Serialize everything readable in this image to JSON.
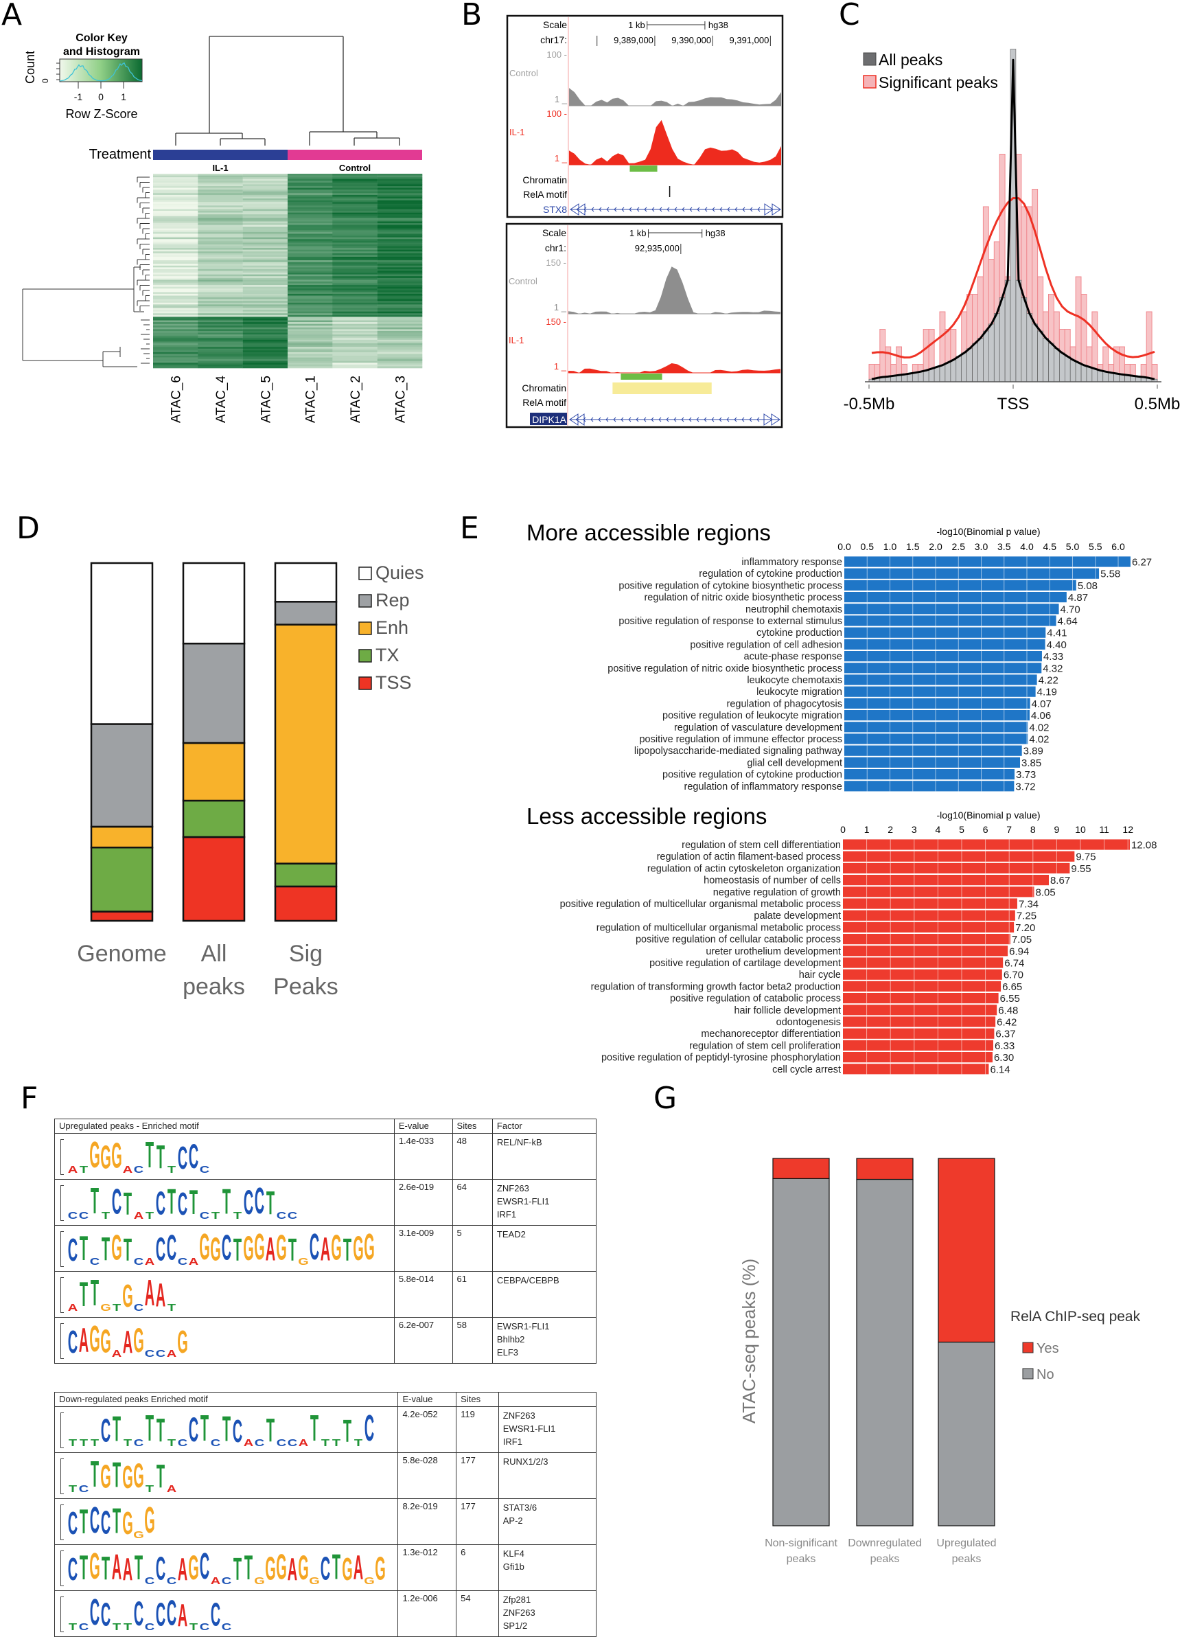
{
  "panel_labels": [
    "A",
    "B",
    "C",
    "D",
    "E",
    "F",
    "G"
  ],
  "panelA": {
    "color_key_title": [
      "Color Key",
      "and Histogram"
    ],
    "count_label": "Count",
    "count_tick": "0",
    "zscore_ticks": [
      "-1",
      "0",
      "1"
    ],
    "zscore_label": "Row Z-Score",
    "treatment_label": "Treatment",
    "groups": [
      {
        "name": "IL-1",
        "color": "#2b3f95"
      },
      {
        "name": "Control",
        "color": "#e23a93"
      }
    ],
    "columns": [
      "ATAC_6",
      "ATAC_4",
      "ATAC_5",
      "ATAC_1",
      "ATAC_2",
      "ATAC_3"
    ],
    "colors": {
      "low": "#f1f8ec",
      "high": "#0b6a31",
      "histogram": "#3fc3d6"
    },
    "relative_intensity": {
      "upper_cluster": [
        0.12,
        0.3,
        0.3,
        0.72,
        0.8,
        0.88
      ],
      "lower_cluster": [
        0.72,
        0.78,
        0.88,
        0.35,
        0.22,
        0.3
      ]
    }
  },
  "panelB": {
    "browsers": [
      {
        "scale_label": "Scale",
        "scale_text": "1 kb",
        "assembly": "hg38",
        "chrom": "chr17:",
        "positions": [
          "9,389,000",
          "9,390,000",
          "9,391,000"
        ],
        "control": {
          "label": "Control",
          "max": "100 -",
          "min": "1 _",
          "signal": [
            0.35,
            0.25,
            0.1,
            0,
            0,
            0.1,
            0.12,
            0.05,
            0.12,
            0.15,
            0.12,
            0,
            0,
            0,
            0,
            0,
            0.1,
            0.12,
            0.08,
            0,
            0.02,
            0,
            0.08,
            0.1,
            0.12,
            0.14,
            0.15,
            0.15,
            0.17,
            0.15,
            0.14,
            0.1,
            0.05,
            0.04,
            0.04,
            0.04,
            0.05,
            0.04,
            0.1,
            0.25
          ]
        },
        "il1": {
          "label": "IL-1",
          "max": "100 -",
          "min": "1 _",
          "signal": [
            0.28,
            0.2,
            0.08,
            0.02,
            0,
            0.12,
            0.15,
            0.05,
            0.15,
            0.22,
            0.2,
            0.05,
            0.04,
            0.05,
            0.08,
            0.3,
            0.75,
            0.9,
            0.6,
            0.3,
            0.1,
            0.05,
            0.03,
            0,
            0.15,
            0.3,
            0.32,
            0.3,
            0.28,
            0.3,
            0.32,
            0.25,
            0.12,
            0.08,
            0.06,
            0.06,
            0.08,
            0.1,
            0.15,
            0.35
          ]
        },
        "chromatin_label": "Chromatin",
        "motif_label": "RelA motif",
        "gene": "STX8",
        "gene_highlight": false
      },
      {
        "scale_label": "Scale",
        "scale_text": "1 kb",
        "assembly": "hg38",
        "chrom": "chr1:",
        "positions": [
          "92,935,000"
        ],
        "control": {
          "label": "Control",
          "max": "150 -",
          "min": "1 _",
          "signal": [
            0.05,
            0.02,
            0,
            0.02,
            0.02,
            0.06,
            0.05,
            0.03,
            0,
            0.01,
            0,
            0.01,
            0,
            0.02,
            0.02,
            0.02,
            0.08,
            0.35,
            0.7,
            0.92,
            0.85,
            0.6,
            0.3,
            0.05,
            0,
            0,
            0,
            0.02,
            0.03,
            0.02,
            0.04,
            0.03,
            0.02,
            0.02,
            0.03,
            0.05,
            0.08,
            0.06,
            0.03,
            0.02
          ]
        },
        "il1": {
          "label": "IL-1",
          "max": "150 -",
          "min": "1 _",
          "signal": [
            0.04,
            0.02,
            0,
            0.08,
            0.1,
            0.08,
            0.04,
            0.02,
            0,
            0.01,
            0,
            0,
            0,
            0,
            0.02,
            0.02,
            0.05,
            0.1,
            0.14,
            0.18,
            0.15,
            0.1,
            0.05,
            0.02,
            0,
            0,
            0,
            0.04,
            0.06,
            0.06,
            0.04,
            0.03,
            0.04,
            0.05,
            0.05,
            0.06,
            0.06,
            0.05,
            0.05,
            0.06
          ]
        },
        "chromatin_label": "Chromatin",
        "motif_label": "RelA motif",
        "gene": "DIPK1A",
        "gene_highlight": true
      }
    ],
    "colors": {
      "control": "#8e8e8e",
      "il1": "#ee2b1e",
      "chromatin": "#6cbd45",
      "motif_region": "#f7eb98",
      "gene": "#2c47a8"
    }
  },
  "chart_data": [
    {
      "type": "histogram",
      "xtick_labels": [
        "-0.5Mb",
        "TSS",
        "0.5Mb"
      ],
      "xlim": [
        -0.5,
        0.5
      ],
      "legend": [
        {
          "name": "All peaks",
          "color": "#6d6e70"
        },
        {
          "name": "Significant peaks",
          "color": "#f5b3b7"
        }
      ],
      "legend_placement": "top-left",
      "series": [
        {
          "name": "Significant peaks",
          "color": "#f7c3c6",
          "line_color": "#ee3124",
          "values": [
            1,
            1,
            3,
            2,
            1,
            2,
            1,
            0,
            1,
            1,
            3,
            3,
            0,
            4,
            3,
            3,
            1,
            4,
            5,
            5,
            6,
            10,
            7,
            8,
            13,
            6,
            12,
            13,
            10,
            10,
            11,
            6,
            4,
            5,
            4,
            3,
            3,
            2,
            6,
            5,
            2,
            4,
            1,
            2,
            1,
            2,
            2,
            1,
            1,
            0,
            1,
            4,
            1
          ]
        },
        {
          "name": "All peaks",
          "color": "#c4c7ca",
          "line_color": "#000000",
          "values": [
            0.15,
            0.22,
            0.27,
            0.3,
            0.34,
            0.38,
            0.42,
            0.47,
            0.52,
            0.58,
            0.65,
            0.75,
            0.85,
            0.95,
            1.1,
            1.25,
            1.45,
            1.65,
            1.9,
            2.2,
            2.5,
            2.9,
            3.3,
            3.9,
            4.8,
            5.8,
            19,
            5.8,
            4.8,
            3.9,
            3.3,
            2.9,
            2.5,
            2.2,
            1.9,
            1.65,
            1.45,
            1.25,
            1.1,
            0.95,
            0.85,
            0.75,
            0.65,
            0.58,
            0.52,
            0.47,
            0.42,
            0.38,
            0.34,
            0.3,
            0.27,
            0.22,
            0.15
          ]
        }
      ]
    },
    {
      "type": "bar",
      "stacked": true,
      "categories": [
        [
          "Genome"
        ],
        [
          "All",
          "peaks"
        ],
        [
          "Sig",
          "Peaks"
        ]
      ],
      "ylim": [
        0,
        100
      ],
      "legend_placement": "right",
      "series": [
        {
          "name": "Quies",
          "color": "#ffffff",
          "values": [
            45,
            22.5,
            10.8
          ]
        },
        {
          "name": "Rep",
          "color": "#9ea1a4",
          "values": [
            28.7,
            27.8,
            6.4
          ]
        },
        {
          "name": "Enh",
          "color": "#f8b22b",
          "values": [
            5.8,
            16.1,
            66.8
          ]
        },
        {
          "name": "TX",
          "color": "#6eab45",
          "values": [
            17.9,
            10.2,
            6.4
          ]
        },
        {
          "name": "TSS",
          "color": "#ee3424",
          "values": [
            2.6,
            23.4,
            9.6
          ]
        }
      ]
    },
    {
      "type": "bar",
      "orientation": "horizontal",
      "title": "More accessible regions",
      "xlabel": "-log10(Binomial p value)",
      "xlim": [
        0,
        6.27
      ],
      "xticks": [
        "0.0",
        "0.5",
        "1.0",
        "1.5",
        "2.0",
        "2.5",
        "3.0",
        "3.5",
        "4.0",
        "4.5",
        "5.0",
        "5.5",
        "6.0"
      ],
      "tick_step": 0.5,
      "color": "#1f76c7",
      "categories": [
        "inflammatory response",
        "regulation of cytokine production",
        "positive regulation of cytokine biosynthetic process",
        "regulation of nitric oxide biosynthetic process",
        "neutrophil chemotaxis",
        "positive regulation of response to external stimulus",
        "cytokine production",
        "positive regulation of cell adhesion",
        "acute-phase response",
        "positive regulation of nitric oxide biosynthetic process",
        "leukocyte chemotaxis",
        "leukocyte migration",
        "regulation of phagocytosis",
        "positive regulation of leukocyte migration",
        "regulation of vasculature development",
        "positive regulation of immune effector process",
        "lipopolysaccharide-mediated signaling pathway",
        "glial cell development",
        "positive regulation of cytokine production",
        "regulation of inflammatory response"
      ],
      "values": [
        6.27,
        5.58,
        5.08,
        4.87,
        4.7,
        4.64,
        4.41,
        4.4,
        4.33,
        4.32,
        4.22,
        4.19,
        4.07,
        4.06,
        4.02,
        4.02,
        3.89,
        3.85,
        3.73,
        3.72
      ],
      "value_labels": [
        "6.27",
        "5.58",
        "5.08",
        "4.87",
        "4.70",
        "4.64",
        "4.41",
        "4.40",
        "4.33",
        "4.32",
        "4.22",
        "4.19",
        "4.07",
        "4.06",
        "4.02",
        "4.02",
        "3.89",
        "3.85",
        "3.73",
        "3.72"
      ]
    },
    {
      "type": "bar",
      "orientation": "horizontal",
      "title": "Less accessible regions",
      "xlabel": "-log10(Binomial p value)",
      "xlim": [
        0,
        12.08
      ],
      "xticks": [
        "0",
        "1",
        "2",
        "3",
        "4",
        "5",
        "6",
        "7",
        "8",
        "9",
        "10",
        "11",
        "12"
      ],
      "tick_step": 1,
      "color": "#ee3b2e",
      "categories": [
        "regulation of stem cell differentiation",
        "regulation of actin filament-based process",
        "regulation of actin cytoskeleton organization",
        "homeostasis of number of cells",
        "negative regulation of growth",
        "positive regulation of multicellular organismal metabolic process",
        "palate development",
        "regulation of multicellular organismal metabolic process",
        "positive regulation of cellular catabolic process",
        "ureter urothelium development",
        "positive regulation of cartilage development",
        "hair cycle",
        "regulation of transforming growth factor beta2 production",
        "positive regulation of catabolic process",
        "hair follicle development",
        "odontogenesis",
        "mechanoreceptor differentiation",
        "regulation of stem cell proliferation",
        "positive regulation of peptidyl-tyrosine phosphorylation",
        "cell cycle arrest"
      ],
      "values": [
        12.08,
        9.75,
        9.55,
        8.67,
        8.05,
        7.34,
        7.25,
        7.2,
        7.05,
        6.94,
        6.74,
        6.7,
        6.65,
        6.55,
        6.48,
        6.42,
        6.37,
        6.33,
        6.3,
        6.14
      ],
      "value_labels": [
        "12.08",
        "9.75",
        "9.55",
        "8.67",
        "8.05",
        "7.34",
        "7.25",
        "7.20",
        "7.05",
        "6.94",
        "6.74",
        "6.70",
        "6.65",
        "6.55",
        "6.48",
        "6.42",
        "6.37",
        "6.33",
        "6.30",
        "6.14"
      ]
    },
    {
      "type": "bar",
      "stacked": true,
      "ylabel": "ATAC-seq peaks (%)",
      "ylim": [
        0,
        100
      ],
      "categories": [
        [
          "Non-significant",
          "peaks"
        ],
        [
          "Downregulated",
          "peaks"
        ],
        [
          "Upregulated",
          "peaks"
        ]
      ],
      "legend_title": "RelA ChIP-seq peak",
      "legend_placement": "right",
      "series": [
        {
          "name": "No",
          "color": "#9b9ea1",
          "values": [
            94.5,
            94.3,
            50
          ]
        },
        {
          "name": "Yes",
          "color": "#ee3a2b",
          "values": [
            5.5,
            5.7,
            50
          ]
        }
      ]
    }
  ],
  "panelF": {
    "nucleotide_colors": {
      "A": "#e4261f",
      "C": "#1b52b5",
      "G": "#f5a623",
      "T": "#1f9438"
    },
    "tables": [
      {
        "headers": [
          "Upregulated peaks  - Enriched motif",
          "E-value",
          "Sites",
          "Factor"
        ],
        "rows": [
          {
            "motif": "atGGGacTTtCCc",
            "evalue": "1.4e-033",
            "sites": "48",
            "factors": [
              "REL/NF-kB"
            ]
          },
          {
            "motif": "ccTtCTatCTCTctTtCCTcc",
            "evalue": "2.6e-019",
            "sites": "64",
            "factors": [
              "ZNF263",
              "EWSR1-FLI1",
              "IRF1"
            ]
          },
          {
            "motif": "CTcTGTcaCCcaGGCTGGAGTgCAGTGG",
            "evalue": "3.1e-009",
            "sites": "5",
            "factors": [
              "TEAD2"
            ]
          },
          {
            "motif": "aTTgtGcAAt",
            "evalue": "5.8e-014",
            "sites": "61",
            "factors": [
              "CEBPA/CEBPB"
            ]
          },
          {
            "motif": "CAGGaAGccaG",
            "evalue": "6.2e-007",
            "sites": "58",
            "factors": [
              "EWSR1-FLI1",
              "Bhlhb2",
              "ELF3"
            ]
          }
        ]
      },
      {
        "headers": [
          "Down-regulated peaks Enriched motif",
          "E-value",
          "Sites",
          ""
        ],
        "rows": [
          {
            "motif": "tttCTtcTTtcCTcTCacTccaTttTtC",
            "evalue": "4.2e-052",
            "sites": "119",
            "factors": [
              "ZNF263",
              "EWSR1-FLI1",
              "IRF1"
            ]
          },
          {
            "motif": "tcTGTGGtTa",
            "evalue": "5.8e-028",
            "sites": "177",
            "factors": [
              "RUNX1/2/3"
            ]
          },
          {
            "motif": "CTCCTGgG",
            "evalue": "8.2e-019",
            "sites": "177",
            "factors": [
              "STAT3/6",
              "AP-2"
            ]
          },
          {
            "motif": "CTGTAATcCcAGCacTTgGGAGgCTGAgG",
            "evalue": "1.3e-012",
            "sites": "6",
            "factors": [
              "KLF4",
              "Gfi1b"
            ]
          },
          {
            "motif": "tcCCttCcCCAtcCc",
            "evalue": "1.2e-006",
            "sites": "54",
            "factors": [
              "Zfp281",
              "ZNF263",
              "SP1/2"
            ]
          }
        ]
      }
    ]
  }
}
